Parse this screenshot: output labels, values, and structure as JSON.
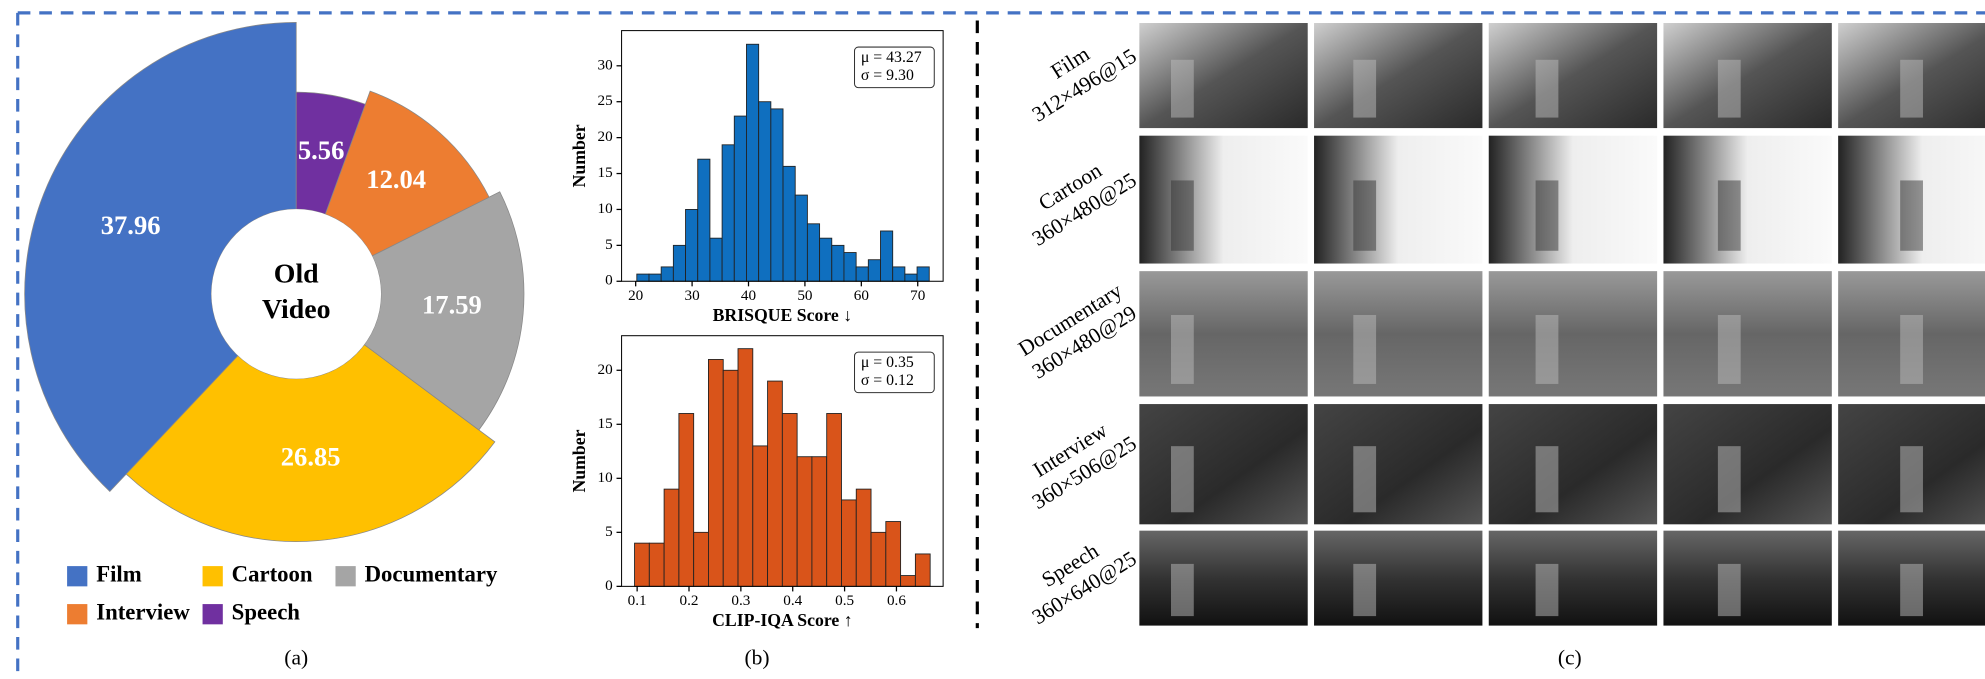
{
  "chart_data": [
    {
      "type": "pie",
      "categories": [
        "Film",
        "Cartoon",
        "Documentary",
        "Interview",
        "Speech"
      ],
      "values": [
        37.96,
        26.85,
        17.59,
        12.04,
        5.56
      ],
      "colors": [
        "#4472c4",
        "#ffc000",
        "#a5a5a5",
        "#ed7d31",
        "#7030a0"
      ],
      "center_label": [
        "Old",
        "Video"
      ],
      "caption": "(a)"
    },
    {
      "type": "histogram",
      "color": "#0f6fbf",
      "xlabel": "BRISQUE Score ↓",
      "ylabel": "Number",
      "annotation": [
        "μ = 43.27",
        "σ = 9.30"
      ],
      "bins": [
        20.2,
        22.36,
        24.52,
        26.68,
        28.84,
        31.0,
        33.16,
        35.32,
        37.48,
        39.64,
        41.8,
        43.96,
        46.12,
        48.28,
        50.44,
        52.6,
        54.76,
        56.92,
        59.08,
        61.24,
        63.4,
        65.56,
        67.72,
        69.88,
        72.04
      ],
      "values": [
        1,
        1,
        2,
        5,
        10,
        17,
        6,
        19,
        23,
        33,
        25,
        24,
        16,
        12,
        8,
        6,
        5,
        4,
        2,
        3,
        7,
        2,
        1,
        2
      ],
      "xlim": [
        17.5,
        74.5
      ],
      "ylim": [
        0,
        34.9
      ],
      "xticks": [
        20,
        30,
        40,
        50,
        60,
        70
      ],
      "yticks": [
        0,
        5,
        10,
        15,
        20,
        25,
        30
      ],
      "caption": "(b)"
    },
    {
      "type": "histogram",
      "color": "#d9541a",
      "xlabel": "CLIP-IQA Score ↑",
      "ylabel": "Number",
      "annotation": [
        "μ = 0.35",
        "σ = 0.12"
      ],
      "bins": [
        0.095,
        0.1235,
        0.152,
        0.1805,
        0.209,
        0.2375,
        0.266,
        0.2945,
        0.323,
        0.3515,
        0.38,
        0.4085,
        0.437,
        0.4655,
        0.494,
        0.5225,
        0.551,
        0.5795,
        0.608,
        0.6365,
        0.665
      ],
      "values": [
        4,
        4,
        9,
        16,
        5,
        21,
        20,
        22,
        13,
        19,
        16,
        12,
        12,
        16,
        8,
        9,
        5,
        6,
        1,
        3
      ],
      "xlim": [
        0.07,
        0.69
      ],
      "ylim": [
        0,
        23.2
      ],
      "xticks": [
        0.1,
        0.2,
        0.3,
        0.4,
        0.5,
        0.6
      ],
      "yticks": [
        0,
        5,
        10,
        15,
        20
      ]
    }
  ],
  "video_samples": {
    "caption": "(c)",
    "rows": [
      {
        "genre": "Film",
        "spec": "312×496@15"
      },
      {
        "genre": "Cartoon",
        "spec": "360×480@25"
      },
      {
        "genre": "Documentary",
        "spec": "360×480@29"
      },
      {
        "genre": "Interview",
        "spec": "360×506@25"
      },
      {
        "genre": "Speech",
        "spec": "360×640@25"
      }
    ]
  }
}
